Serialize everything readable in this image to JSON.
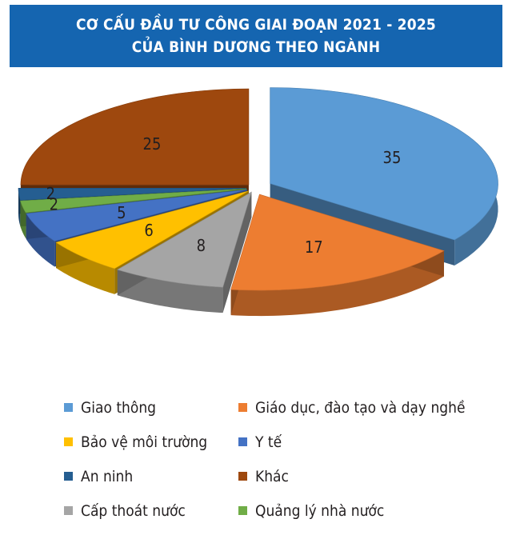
{
  "header": {
    "title_line1": "CƠ CẤU ĐẦU TƯ CÔNG GIAI ĐOẠN 2021 - 2025",
    "title_line2": "CỦA BÌNH DƯƠNG THEO NGÀNH"
  },
  "chart_data": {
    "type": "pie",
    "title": "CƠ CẤU ĐẦU TƯ CÔNG GIAI ĐOẠN 2021 - 2025 CỦA BÌNH DƯƠNG THEO NGÀNH",
    "style": "3d-exploded",
    "slices": [
      {
        "label": "Giao thông",
        "value": 35,
        "color": "#5b9bd5"
      },
      {
        "label": "Giáo dục, đào tạo và dạy nghề",
        "value": 17,
        "color": "#ed7d31"
      },
      {
        "label": "Cấp thoát nước",
        "value": 8,
        "color": "#a5a5a5"
      },
      {
        "label": "Bảo vệ môi trường",
        "value": 6,
        "color": "#ffc000"
      },
      {
        "label": "Y tế",
        "value": 5,
        "color": "#4472c4"
      },
      {
        "label": "Quảng lý nhà nước",
        "value": 2,
        "color": "#70ad47"
      },
      {
        "label": "An ninh",
        "value": 2,
        "color": "#255e91"
      },
      {
        "label": "Khác",
        "value": 25,
        "color": "#9e480e"
      }
    ],
    "legend": [
      {
        "label": "Giao thông",
        "color": "#5b9bd5"
      },
      {
        "label": "Giáo dục, đào tạo và dạy nghề",
        "color": "#ed7d31"
      },
      {
        "label": "Bảo vệ môi trường",
        "color": "#ffc000"
      },
      {
        "label": "Y tế",
        "color": "#4472c4"
      },
      {
        "label": "An ninh",
        "color": "#255e91"
      },
      {
        "label": "Khác",
        "color": "#9e480e"
      },
      {
        "label": "Cấp thoát nước",
        "color": "#a5a5a5"
      },
      {
        "label": "Quảng lý nhà nước",
        "color": "#70ad47"
      }
    ],
    "legend_position": "bottom"
  }
}
